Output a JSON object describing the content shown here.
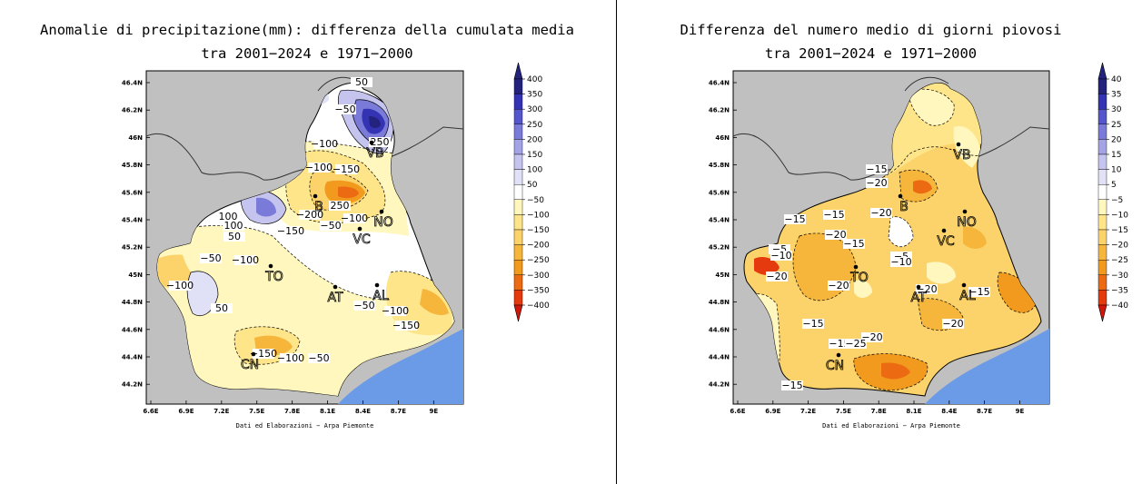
{
  "left_map": {
    "title_line1": "Anomalie di precipitazione(mm): differenza della cumulata media",
    "title_line2": "tra 2001−2024 e 1971−2000",
    "credit": "Dati ed Elaborazioni − Arpa Piemonte",
    "lat_labels": [
      "46.4N",
      "46.2N",
      "46N",
      "45.8N",
      "45.6N",
      "45.4N",
      "45.2N",
      "45N",
      "44.8N",
      "44.6N",
      "44.4N",
      "44.2N"
    ],
    "lon_labels": [
      "6.6E",
      "6.9E",
      "7.2E",
      "7.5E",
      "7.8E",
      "8.1E",
      "8.4E",
      "8.7E",
      "9E"
    ],
    "legend": [
      "400",
      "350",
      "300",
      "250",
      "200",
      "150",
      "100",
      "50",
      "−50",
      "−100",
      "−150",
      "−200",
      "−250",
      "−300",
      "−350",
      "−400"
    ],
    "cities": [
      "VB",
      "B",
      "NO",
      "VC",
      "TO",
      "AT",
      "AL",
      "CN"
    ],
    "contour_labels": [
      "50",
      "−50",
      "−100",
      "250",
      "−100",
      "−150",
      "250",
      "−200",
      "100",
      "−100",
      "100",
      "50",
      "−150",
      "−50",
      "−50",
      "−100",
      "−100",
      "50",
      "−50",
      "−100",
      "−150",
      "−50",
      "−150",
      "−100"
    ]
  },
  "right_map": {
    "title_line1": "Differenza del numero medio di giorni piovosi",
    "title_line2": "tra 2001−2024 e 1971−2000",
    "credit": "Dati ed Elaborazioni − Arpa Piemonte",
    "lat_labels": [
      "46.4N",
      "46.2N",
      "46N",
      "45.8N",
      "45.6N",
      "45.4N",
      "45.2N",
      "45N",
      "44.8N",
      "44.6N",
      "44.4N",
      "44.2N"
    ],
    "lon_labels": [
      "6.6E",
      "6.9E",
      "7.2E",
      "7.5E",
      "7.8E",
      "8.1E",
      "8.4E",
      "8.7E",
      "9E"
    ],
    "legend": [
      "40",
      "35",
      "30",
      "25",
      "20",
      "15",
      "10",
      "5",
      "−5",
      "−10",
      "−15",
      "−20",
      "−25",
      "−30",
      "−35",
      "−40"
    ],
    "cities": [
      "VB",
      "B",
      "NO",
      "VC",
      "TO",
      "AT",
      "AL",
      "CN"
    ],
    "contour_labels": [
      "−15",
      "−20",
      "−15",
      "−15",
      "−20",
      "−20",
      "−15",
      "−5",
      "−10",
      "−5",
      "−10",
      "−20",
      "−20",
      "−15",
      "−20",
      "−20",
      "−15",
      "−25",
      "−20",
      "−15",
      "−15"
    ]
  },
  "colors": {
    "outside": "#c0c0c0",
    "sea": "#6b9be6",
    "blue_scale": [
      "#23237e",
      "#3333b3",
      "#5555cc",
      "#7a7ad9",
      "#a3a3e6",
      "#c4c4ee",
      "#e0e0f7",
      "#ffffff"
    ],
    "warm_scale": [
      "#fff7bd",
      "#ffe58a",
      "#fcd36a",
      "#f6b63c",
      "#f19a1e",
      "#ec6a12",
      "#e43a0e",
      "#d1160b"
    ]
  }
}
